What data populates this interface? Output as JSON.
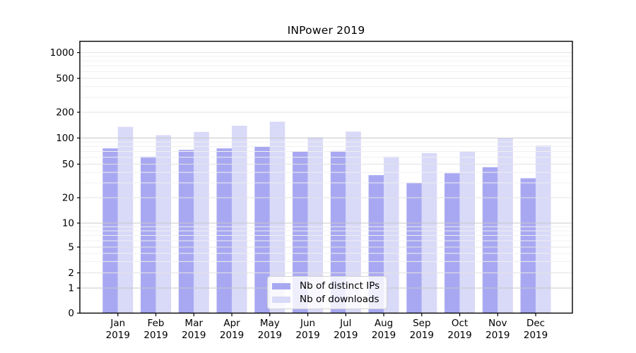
{
  "chart_data": {
    "type": "bar",
    "title": "INPower 2019",
    "xlabel": "",
    "ylabel": "",
    "yscale": "log-with-zero",
    "y_ticks": [
      0,
      1,
      2,
      5,
      10,
      20,
      50,
      100,
      200,
      500,
      1000
    ],
    "ylim": [
      0,
      1350
    ],
    "grid": "both, drawn over bars",
    "legend_position": "lower center",
    "categories": [
      "Jan",
      "Feb",
      "Mar",
      "Apr",
      "May",
      "Jun",
      "Jul",
      "Aug",
      "Sep",
      "Oct",
      "Nov",
      "Dec"
    ],
    "x_tick_year": "2019",
    "series": [
      {
        "name": "Nb of distinct IPs",
        "color": "#a8a8f2",
        "values": [
          76,
          61,
          73,
          76,
          79,
          70,
          71,
          37,
          30,
          39,
          46,
          34
        ]
      },
      {
        "name": "Nb of downloads",
        "color": "#d9d9f8",
        "values": [
          135,
          108,
          118,
          139,
          155,
          102,
          119,
          61,
          67,
          70,
          100,
          82
        ]
      }
    ],
    "colors": {
      "spine": "#000000",
      "tick_text": "#000000",
      "grid_major_power10": "#c8c8c8",
      "grid_major_other": "#e3e3e3",
      "grid_minor": "#f0f0f0",
      "legend_border": "#d2d2d2"
    }
  }
}
